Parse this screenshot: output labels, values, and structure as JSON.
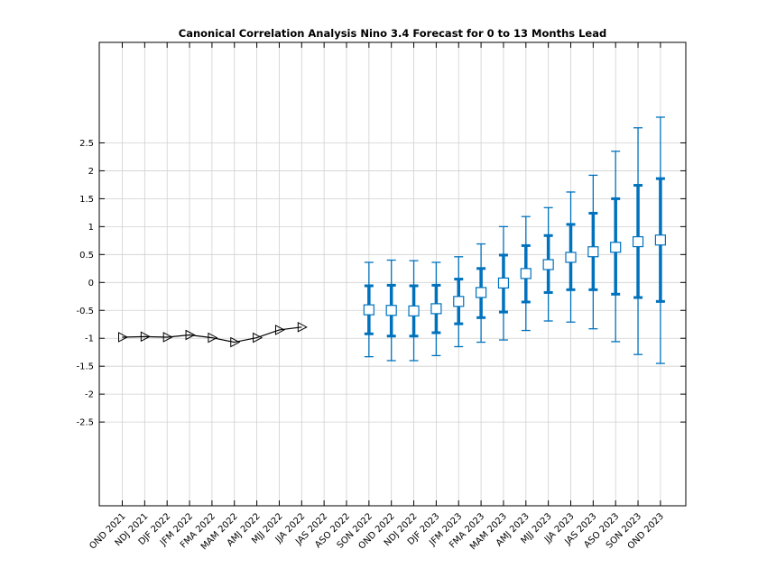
{
  "chart_data": {
    "type": "line",
    "title": "Canonical Correlation Analysis Nino 3.4 Forecast for 0 to 13 Months Lead",
    "xlabel": "",
    "ylabel": "",
    "ylim": [
      -4,
      4.3
    ],
    "yticks": [
      2.5,
      2,
      1.5,
      1,
      0.5,
      0,
      -0.5,
      -1,
      -1.5,
      -2,
      -2.5
    ],
    "ytick_labels": [
      "2.5",
      "2",
      "1.5",
      "1",
      "0.5",
      "0",
      "-0.5",
      "-1",
      "-1.5",
      "-2",
      "-2.5"
    ],
    "categories": [
      "OND 2021",
      "NDJ 2021",
      "DJF 2022",
      "JFM 2022",
      "FMA 2022",
      "MAM 2022",
      "AMJ 2022",
      "MJJ 2022",
      "JJA 2022",
      "JAS 2022",
      "ASO 2022",
      "SON 2022",
      "OND 2022",
      "NDJ 2022",
      "DJF 2023",
      "JFM 2023",
      "FMA 2023",
      "MAM 2023",
      "AMJ 2023",
      "MJJ 2023",
      "JJA 2023",
      "JAS 2023",
      "ASO 2023",
      "SON 2023",
      "OND 2023"
    ],
    "grid": true,
    "series": [
      {
        "type": "line",
        "marker": "triangle-right",
        "color": "#000000",
        "x": [
          "OND 2021",
          "NDJ 2021",
          "DJF 2022",
          "JFM 2022",
          "FMA 2022",
          "MAM 2022",
          "AMJ 2022",
          "MJJ 2022",
          "JJA 2022"
        ],
        "values": [
          -0.98,
          -0.97,
          -0.98,
          -0.94,
          -0.99,
          -1.07,
          -0.99,
          -0.85,
          -0.8
        ]
      },
      {
        "type": "errorbar",
        "marker": "square",
        "color": "#0072bd",
        "x": [
          "SON 2022",
          "OND 2022",
          "NDJ 2022",
          "DJF 2023",
          "JFM 2023",
          "FMA 2023",
          "MAM 2023",
          "AMJ 2023",
          "MJJ 2023",
          "JJA 2023",
          "JAS 2023",
          "ASO 2023",
          "SON 2023",
          "OND 2023"
        ],
        "values": [
          -0.49,
          -0.5,
          -0.51,
          -0.47,
          -0.34,
          -0.18,
          -0.01,
          0.16,
          0.32,
          0.45,
          0.55,
          0.63,
          0.73,
          0.76
        ],
        "inner_low": [
          -0.92,
          -0.96,
          -0.96,
          -0.9,
          -0.74,
          -0.63,
          -0.53,
          -0.35,
          -0.18,
          -0.13,
          -0.13,
          -0.21,
          -0.27,
          -0.34
        ],
        "inner_high": [
          -0.06,
          -0.05,
          -0.06,
          -0.05,
          0.06,
          0.25,
          0.49,
          0.66,
          0.84,
          1.04,
          1.24,
          1.5,
          1.74,
          1.86
        ],
        "outer_low": [
          -1.33,
          -1.4,
          -1.4,
          -1.31,
          -1.15,
          -1.07,
          -1.03,
          -0.86,
          -0.69,
          -0.71,
          -0.83,
          -1.06,
          -1.29,
          -1.45
        ],
        "outer_high": [
          0.36,
          0.4,
          0.39,
          0.36,
          0.46,
          0.69,
          1.0,
          1.18,
          1.34,
          1.62,
          1.92,
          2.35,
          2.77,
          2.96
        ]
      }
    ]
  }
}
